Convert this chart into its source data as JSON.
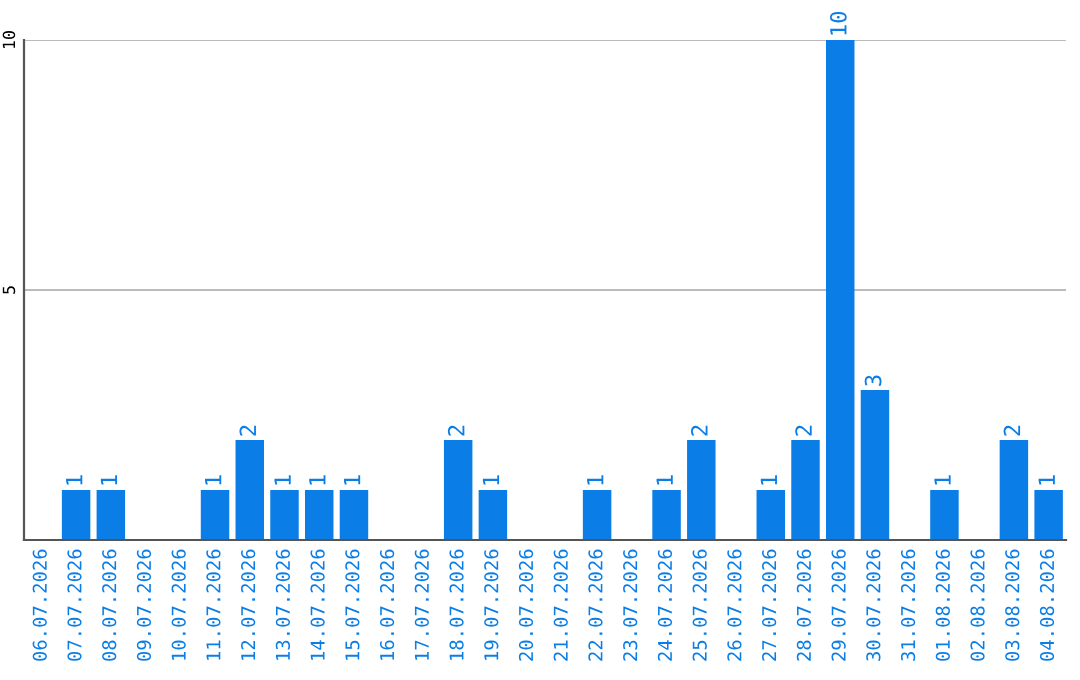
{
  "chart_data": {
    "type": "bar",
    "categories": [
      "06.07.2026",
      "07.07.2026",
      "08.07.2026",
      "09.07.2026",
      "10.07.2026",
      "11.07.2026",
      "12.07.2026",
      "13.07.2026",
      "14.07.2026",
      "15.07.2026",
      "16.07.2026",
      "17.07.2026",
      "18.07.2026",
      "19.07.2026",
      "20.07.2026",
      "21.07.2026",
      "22.07.2026",
      "23.07.2026",
      "24.07.2026",
      "25.07.2026",
      "26.07.2026",
      "27.07.2026",
      "28.07.2026",
      "29.07.2026",
      "30.07.2026",
      "31.07.2026",
      "01.08.2026",
      "02.08.2026",
      "03.08.2026",
      "04.08.2026"
    ],
    "values": [
      0,
      1,
      1,
      0,
      0,
      1,
      2,
      1,
      1,
      1,
      0,
      0,
      2,
      1,
      0,
      0,
      1,
      0,
      1,
      2,
      0,
      1,
      2,
      10,
      3,
      0,
      1,
      0,
      2,
      1
    ],
    "value_labels": [
      null,
      "1",
      "1",
      null,
      null,
      "1",
      "2",
      "1",
      "1",
      "1",
      null,
      null,
      "2",
      "1",
      null,
      null,
      "1",
      null,
      "1",
      "2",
      null,
      "1",
      "2",
      "10",
      "3",
      null,
      "1",
      null,
      "2",
      "1"
    ],
    "color": "#0a7ee6",
    "ylim": [
      0,
      10
    ],
    "yticks": [
      5,
      10
    ],
    "grid": "y"
  }
}
